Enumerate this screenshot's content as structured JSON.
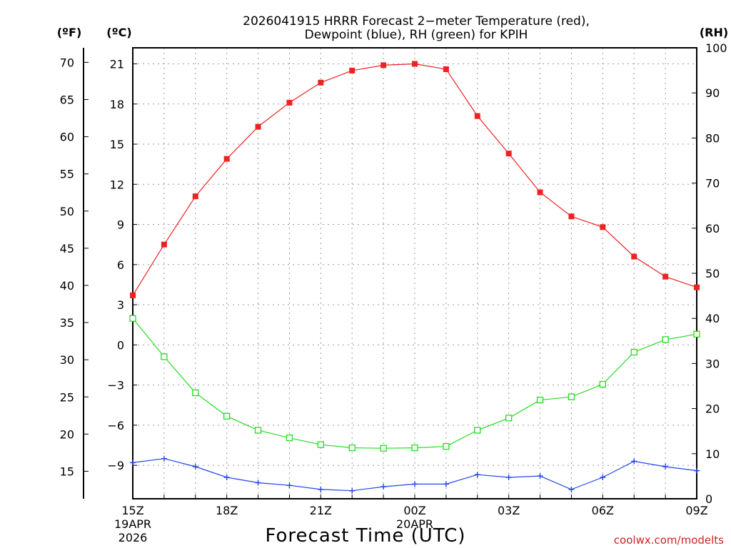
{
  "chart_data": {
    "type": "line",
    "title_line1": "2026041915 HRRR Forecast 2−meter Temperature (red),",
    "title_line2": "Dewpoint (blue), RH (green) for KPIH",
    "xlabel": "Forecast Time (UTC)",
    "credit": "coolwx.com/modelts",
    "unit_f": "(ºF)",
    "unit_c": "(ºC)",
    "unit_rh": "(RH)",
    "hours": [
      0,
      1,
      2,
      3,
      4,
      5,
      6,
      7,
      8,
      9,
      10,
      11,
      12,
      13,
      14,
      15,
      16,
      17,
      18
    ],
    "x_ticks": [
      {
        "hour": 0,
        "label": "15Z",
        "sub1": "19APR",
        "sub2": "2026"
      },
      {
        "hour": 3,
        "label": "18Z"
      },
      {
        "hour": 6,
        "label": "21Z"
      },
      {
        "hour": 9,
        "label": "00Z",
        "sub1": "20APR"
      },
      {
        "hour": 12,
        "label": "03Z"
      },
      {
        "hour": 15,
        "label": "06Z"
      },
      {
        "hour": 18,
        "label": "09Z"
      }
    ],
    "ylim_c": [
      -11.5,
      22.2
    ],
    "ylim_rh": [
      0,
      100
    ],
    "y_ticks_c": [
      21,
      18,
      15,
      12,
      9,
      6,
      3,
      0,
      -3,
      -6,
      -9
    ],
    "y_tick_labels_c": [
      "21",
      "18",
      "15",
      "12",
      "9",
      "6",
      "3",
      "0",
      "−3",
      "−6",
      "−9"
    ],
    "y_ticks_f": [
      70,
      65,
      60,
      55,
      50,
      45,
      40,
      35,
      30,
      25,
      20,
      15
    ],
    "y_ticks_rh": [
      100,
      90,
      80,
      70,
      60,
      50,
      40,
      30,
      20,
      10,
      0
    ],
    "series": [
      {
        "name": "Temperature",
        "axis": "c",
        "color": "#ee2222",
        "marker": "filled-square",
        "values": [
          3.7,
          7.5,
          11.1,
          13.9,
          16.3,
          18.1,
          19.6,
          20.5,
          20.9,
          21.0,
          20.6,
          17.1,
          14.3,
          11.4,
          9.6,
          8.8,
          6.6,
          5.1,
          4.3
        ]
      },
      {
        "name": "Dewpoint",
        "axis": "c",
        "color": "#2244ee",
        "marker": "plus",
        "values": [
          -8.8,
          -8.5,
          -9.1,
          -9.9,
          -10.3,
          -10.5,
          -10.8,
          -10.9,
          -10.6,
          -10.4,
          -10.4,
          -9.7,
          -9.9,
          -9.8,
          -10.8,
          -9.9,
          -8.7,
          -9.1,
          -9.4
        ]
      },
      {
        "name": "RH",
        "axis": "rh",
        "color": "#22dd22",
        "marker": "open-square",
        "values": [
          40,
          31.5,
          23.5,
          18.3,
          15.2,
          13.5,
          12.0,
          11.3,
          11.2,
          11.3,
          11.6,
          15.2,
          17.9,
          21.9,
          22.6,
          25.4,
          32.5,
          35.3,
          36.5
        ]
      }
    ]
  }
}
